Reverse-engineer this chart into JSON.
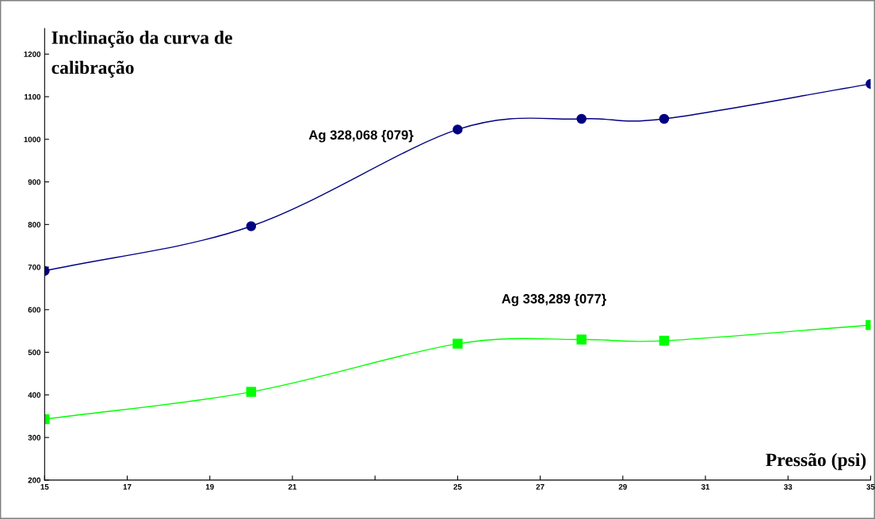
{
  "chart_data": {
    "type": "line",
    "ylabel": "Inclinação da curva de\ncalibração",
    "xlabel": "Pressão (psi)",
    "xlim": [
      15,
      35
    ],
    "xticks": [
      15,
      17,
      19,
      21,
      {
        "value": 23,
        "label": null
      },
      25,
      27,
      29,
      31,
      33,
      35
    ],
    "ylim": [
      200,
      1260
    ],
    "yticks": [
      200,
      300,
      400,
      500,
      600,
      700,
      800,
      900,
      1000,
      1100,
      1200
    ],
    "grid": false,
    "legend": false,
    "series": [
      {
        "name": "Ag 328,068 {079}",
        "color": "#000080",
        "marker": "circle",
        "x": [
          15,
          20,
          25,
          28,
          30,
          35
        ],
        "values": [
          691,
          796,
          1023,
          1048,
          1048,
          1130
        ]
      },
      {
        "name": "Ag 338,289 {077}",
        "color": "#00ff00",
        "marker": "square",
        "x": [
          15,
          20,
          25,
          28,
          30,
          35
        ],
        "values": [
          343,
          407,
          520,
          530,
          527,
          564
        ]
      }
    ]
  }
}
